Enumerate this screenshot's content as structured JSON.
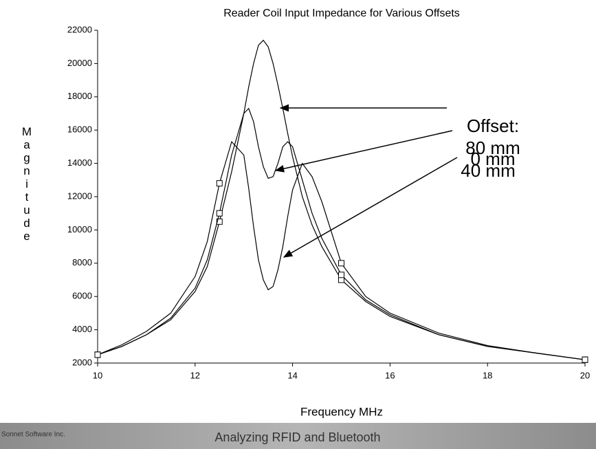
{
  "chart_data": {
    "type": "line",
    "title": "Reader Coil Input Impedance for Various Offsets",
    "x_label": "Frequency MHz",
    "y_label": "Magnitude",
    "source": "Sonnet Software Inc.",
    "x": [
      10,
      10.5,
      11,
      11.5,
      12,
      12.25,
      12.5,
      12.75,
      13,
      13.1,
      13.2,
      13.3,
      13.4,
      13.5,
      13.6,
      13.7,
      13.8,
      13.9,
      14,
      14.2,
      14.4,
      14.6,
      15,
      15.5,
      16,
      17,
      18,
      19,
      20
    ],
    "series": [
      {
        "name": "80 mm",
        "color": "#000000",
        "values": [
          2500,
          3000,
          3700,
          4600,
          6300,
          7800,
          10500,
          13500,
          17000,
          18600,
          20000,
          21100,
          21400,
          21000,
          20000,
          18700,
          17300,
          15800,
          14400,
          12000,
          10300,
          9000,
          7000,
          5700,
          4800,
          3700,
          3000,
          2600,
          2200
        ]
      },
      {
        "name": "40 mm",
        "color": "#000000",
        "values": [
          2500,
          3000,
          3700,
          4700,
          6500,
          8200,
          11000,
          14500,
          17000,
          17300,
          16500,
          15000,
          13800,
          13100,
          13200,
          14000,
          15000,
          15300,
          15000,
          13000,
          11000,
          9500,
          7300,
          5800,
          4900,
          3700,
          3000,
          2600,
          2200
        ]
      },
      {
        "name": "0 mm",
        "color": "#000000",
        "values": [
          2500,
          3100,
          3900,
          5000,
          7200,
          9300,
          12800,
          15300,
          14500,
          12500,
          10200,
          8200,
          7000,
          6400,
          6600,
          7600,
          9000,
          10800,
          12400,
          14000,
          13200,
          11700,
          8000,
          6000,
          5000,
          3800,
          3050,
          2600,
          2200
        ]
      }
    ],
    "marker_x": [
      10,
      12.5,
      15,
      20
    ],
    "legend_title": "Offset:",
    "xlim": [
      10,
      20
    ],
    "xticks": [
      10,
      12,
      14,
      16,
      18,
      20
    ],
    "ylim": [
      2000,
      22000
    ],
    "yticks": [
      2000,
      4000,
      6000,
      8000,
      10000,
      12000,
      14000,
      16000,
      18000,
      20000,
      22000
    ]
  },
  "footer": {
    "caption": "Analyzing RFID and Bluetooth"
  }
}
